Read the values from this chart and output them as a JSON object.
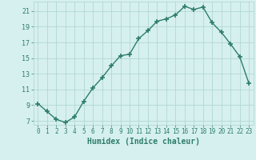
{
  "x": [
    0,
    1,
    2,
    3,
    4,
    5,
    6,
    7,
    8,
    9,
    10,
    11,
    12,
    13,
    14,
    15,
    16,
    17,
    18,
    19,
    20,
    21,
    22,
    23
  ],
  "y": [
    9.2,
    8.2,
    7.2,
    6.8,
    7.5,
    9.5,
    11.2,
    12.5,
    14.0,
    15.3,
    15.5,
    17.5,
    18.5,
    19.7,
    20.0,
    20.5,
    21.6,
    21.2,
    21.5,
    19.5,
    18.3,
    16.8,
    15.2,
    11.8
  ],
  "xlabel": "Humidex (Indice chaleur)",
  "xlim": [
    -0.5,
    23.5
  ],
  "ylim": [
    6.5,
    22.2
  ],
  "yticks": [
    7,
    9,
    11,
    13,
    15,
    17,
    19,
    21
  ],
  "xticks": [
    0,
    1,
    2,
    3,
    4,
    5,
    6,
    7,
    8,
    9,
    10,
    11,
    12,
    13,
    14,
    15,
    16,
    17,
    18,
    19,
    20,
    21,
    22,
    23
  ],
  "line_color": "#2e7d6e",
  "marker_color": "#2e7d6e",
  "bg_color": "#d6f0ef",
  "grid_color": "#b0d8d4",
  "text_color": "#2e7d6e"
}
